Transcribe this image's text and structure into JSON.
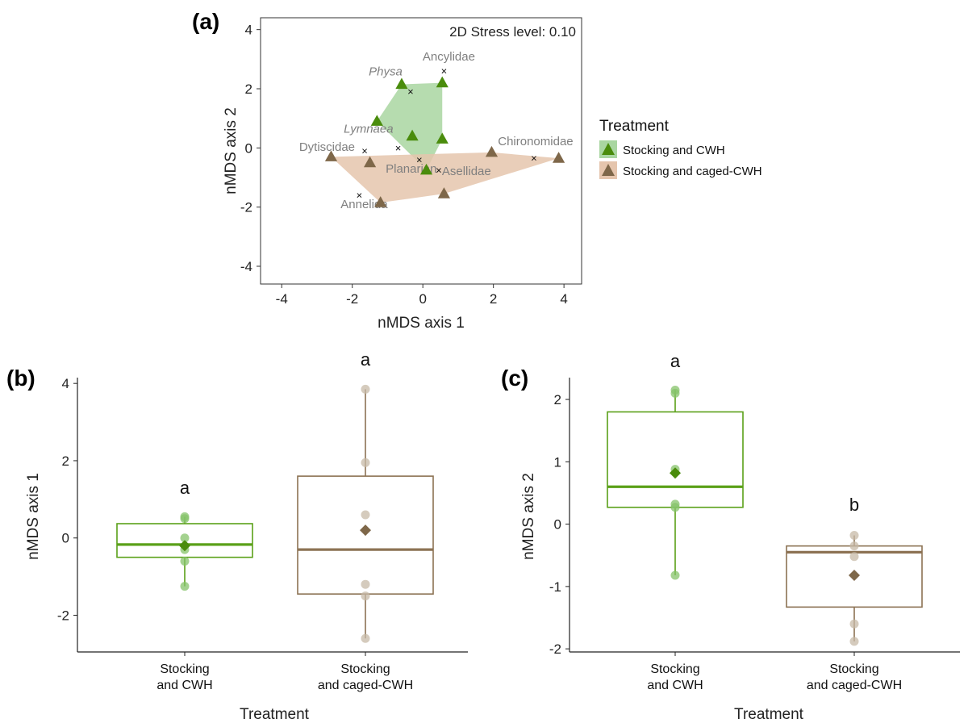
{
  "colors": {
    "cwh": "#4a8c0c",
    "cwh_light": "#5aa018",
    "cwh_fill": "#a9d6a1",
    "caged": "#7e6749",
    "caged_box": "#8c7253",
    "caged_fill": "#e5c5ad",
    "point_cwh": "#86c36a",
    "point_caged": "#c7b9a7"
  },
  "chart_data": [
    {
      "id": "a",
      "panel_label": "(a)",
      "type": "scatter",
      "title": "2D Stress level: 0.10",
      "xlabel": "nMDS axis 1",
      "ylabel": "nMDS axis 2",
      "xlim": [
        -4.6,
        4.5
      ],
      "ylim": [
        -4.6,
        4.4
      ],
      "xticks": [
        -4,
        -2,
        0,
        2,
        4
      ],
      "yticks": [
        4,
        2,
        0,
        -2,
        -4
      ],
      "series": [
        {
          "name": "Stocking and CWH",
          "key": "cwh",
          "points": [
            [
              -0.6,
              2.15
            ],
            [
              0.55,
              2.2
            ],
            [
              -1.3,
              0.9
            ],
            [
              -0.3,
              0.4
            ],
            [
              0.55,
              0.3
            ],
            [
              0.1,
              -0.75
            ]
          ],
          "hull": [
            [
              -0.6,
              2.15
            ],
            [
              0.55,
              2.2
            ],
            [
              0.55,
              0.3
            ],
            [
              0.1,
              -0.75
            ],
            [
              -1.3,
              0.9
            ]
          ]
        },
        {
          "name": "Stocking and caged-CWH",
          "key": "caged",
          "points": [
            [
              -2.6,
              -0.3
            ],
            [
              -1.5,
              -0.5
            ],
            [
              -1.2,
              -1.85
            ],
            [
              0.6,
              -1.55
            ],
            [
              1.95,
              -0.15
            ],
            [
              3.85,
              -0.35
            ]
          ],
          "hull": [
            [
              -2.6,
              -0.3
            ],
            [
              1.95,
              -0.15
            ],
            [
              3.85,
              -0.35
            ],
            [
              0.6,
              -1.55
            ],
            [
              -1.2,
              -1.85
            ]
          ]
        }
      ],
      "taxa": [
        {
          "name": "Physa",
          "x": -0.35,
          "y": 1.9,
          "italic": true
        },
        {
          "name": "Ancylidae",
          "x": 0.6,
          "y": 2.6,
          "italic": false
        },
        {
          "name": "Lymnaea",
          "x": -0.7,
          "y": 0.0,
          "italic": true
        },
        {
          "name": "Dytiscidae",
          "x": -1.65,
          "y": -0.1,
          "italic": false
        },
        {
          "name": "Chironomidae",
          "x": 3.15,
          "y": -0.35,
          "italic": false
        },
        {
          "name": "Asellidae",
          "x": 0.45,
          "y": -0.75,
          "italic": false
        },
        {
          "name": "Planarian",
          "x": -0.1,
          "y": -0.4,
          "italic": false
        },
        {
          "name": "Annelida",
          "x": -1.8,
          "y": -1.6,
          "italic": false
        }
      ],
      "legend": {
        "title": "Treatment",
        "items": [
          "Stocking and CWH",
          "Stocking and caged-CWH"
        ],
        "placement": "right"
      }
    },
    {
      "id": "b",
      "panel_label": "(b)",
      "type": "box",
      "xlabel": "Treatment",
      "ylabel": "nMDS axis 1",
      "ylim": [
        -2.95,
        4.15
      ],
      "yticks": [
        4,
        2,
        0,
        -2
      ],
      "categories": [
        "Stocking\nand CWH",
        "Stocking\nand caged-CWH"
      ],
      "boxes": [
        {
          "key": "cwh",
          "min": -1.25,
          "q1": -0.5,
          "median": -0.17,
          "q3": 0.37,
          "max": 0.55,
          "mean": -0.2,
          "points": [
            0.55,
            0.5,
            0.0,
            -0.3,
            -0.6,
            -1.25
          ],
          "letter": "a"
        },
        {
          "key": "caged",
          "min": -2.6,
          "q1": -1.45,
          "median": -0.3,
          "q3": 1.6,
          "max": 3.85,
          "mean": 0.2,
          "points": [
            3.85,
            1.95,
            0.6,
            -1.2,
            -1.5,
            -2.6
          ],
          "letter": "a"
        }
      ]
    },
    {
      "id": "c",
      "panel_label": "(c)",
      "type": "box",
      "xlabel": "Treatment",
      "ylabel": "nMDS axis 2",
      "ylim": [
        -2.05,
        2.35
      ],
      "yticks": [
        2,
        1,
        0,
        -1,
        -2
      ],
      "categories": [
        "Stocking\nand CWH",
        "Stocking\nand caged-CWH"
      ],
      "boxes": [
        {
          "key": "cwh",
          "min": -0.82,
          "q1": 0.27,
          "median": 0.6,
          "q3": 1.8,
          "max": 2.15,
          "mean": 0.82,
          "points": [
            2.15,
            2.1,
            0.88,
            0.32,
            0.27,
            -0.82
          ],
          "letter": "a"
        },
        {
          "key": "caged",
          "min": -1.88,
          "q1": -1.33,
          "median": -0.45,
          "q3": -0.35,
          "max": -0.18,
          "mean": -0.82,
          "points": [
            -0.18,
            -0.35,
            -0.52,
            -1.6,
            -1.88
          ],
          "letter": "b"
        }
      ]
    }
  ]
}
